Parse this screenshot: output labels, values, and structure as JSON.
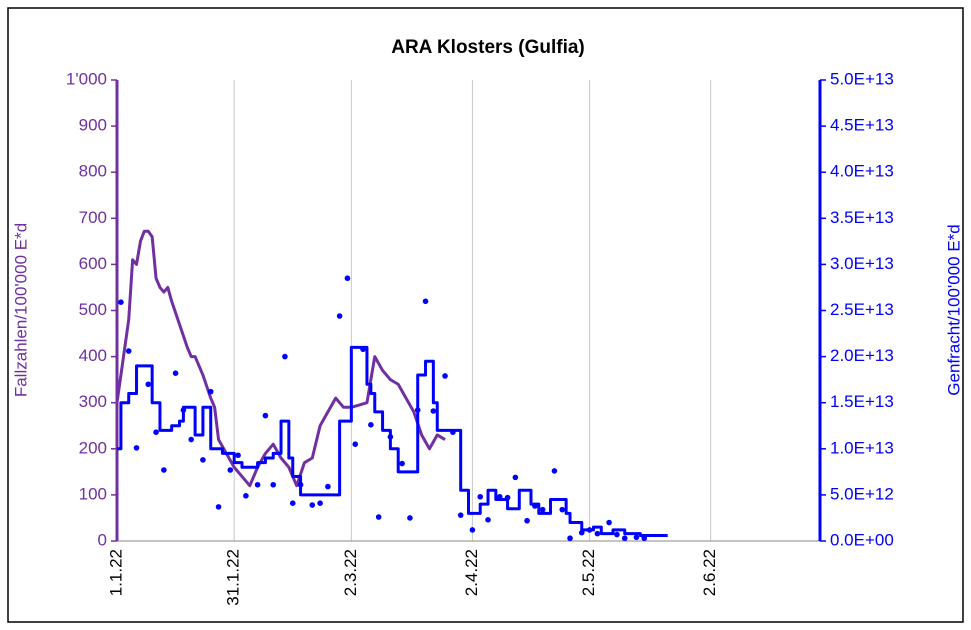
{
  "chart_data": {
    "type": "combo",
    "title": "ARA Klosters (Gulfia)",
    "ylabel": "Fallzahlen/100'000 E*d",
    "y2label": "Genfracht/100'000 E*d",
    "ylim": [
      0,
      1000
    ],
    "yticks": [
      0,
      100,
      200,
      300,
      400,
      500,
      600,
      700,
      800,
      900,
      {
        "value": 1000,
        "label": "1'000"
      }
    ],
    "y2lim": [
      0,
      50000000000000.0
    ],
    "y2ticks": [
      {
        "value": 0,
        "label": "0.0E+00"
      },
      {
        "value": 5000000000000.0,
        "label": "5.0E+12"
      },
      {
        "value": 10000000000000.0,
        "label": "1.0E+13"
      },
      {
        "value": 15000000000000.0,
        "label": "1.5E+13"
      },
      {
        "value": 20000000000000.0,
        "label": "2.0E+13"
      },
      {
        "value": 25000000000000.0,
        "label": "2.5E+13"
      },
      {
        "value": 30000000000000.0,
        "label": "3.0E+13"
      },
      {
        "value": 35000000000000.0,
        "label": "3.5E+13"
      },
      {
        "value": 40000000000000.0,
        "label": "4.0E+13"
      },
      {
        "value": 45000000000000.0,
        "label": "4.5E+13"
      },
      {
        "value": 50000000000000.0,
        "label": "5.0E+13"
      }
    ],
    "xlim": [
      "2022-01-01",
      "2022-06-30"
    ],
    "xticks": [
      {
        "value": "2022-01-01",
        "label": "1.1.22"
      },
      {
        "value": "2022-01-31",
        "label": "31.1.22"
      },
      {
        "value": "2022-03-02",
        "label": "2.3.22"
      },
      {
        "value": "2022-04-02",
        "label": "2.4.22"
      },
      {
        "value": "2022-05-02",
        "label": "2.5.22"
      },
      {
        "value": "2022-06-02",
        "label": "2.6.22"
      }
    ],
    "xgrid": true,
    "ycolor": "#7030a0",
    "y2color": "#0000ff",
    "series": [
      {
        "type": "line",
        "color": "#7030a0",
        "axis": "y",
        "x": [
          "2022-01-01",
          "2022-01-03",
          "2022-01-04",
          "2022-01-05",
          "2022-01-06",
          "2022-01-07",
          "2022-01-08",
          "2022-01-09",
          "2022-01-10",
          "2022-01-11",
          "2022-01-12",
          "2022-01-13",
          "2022-01-14",
          "2022-01-15",
          "2022-01-17",
          "2022-01-19",
          "2022-01-20",
          "2022-01-21",
          "2022-01-23",
          "2022-01-25",
          "2022-01-26",
          "2022-01-27",
          "2022-01-29",
          "2022-01-31",
          "2022-02-02",
          "2022-02-04",
          "2022-02-06",
          "2022-02-08",
          "2022-02-10",
          "2022-02-12",
          "2022-02-14",
          "2022-02-16",
          "2022-02-18",
          "2022-02-20",
          "2022-02-22",
          "2022-02-24",
          "2022-02-26",
          "2022-02-28",
          "2022-03-02",
          "2022-03-04",
          "2022-03-06",
          "2022-03-08",
          "2022-03-10",
          "2022-03-12",
          "2022-03-14",
          "2022-03-16",
          "2022-03-18",
          "2022-03-20",
          "2022-03-22",
          "2022-03-24",
          "2022-03-26"
        ],
        "values": [
          300,
          420,
          480,
          610,
          600,
          650,
          672,
          672,
          660,
          570,
          550,
          540,
          550,
          520,
          470,
          420,
          400,
          400,
          360,
          310,
          290,
          220,
          190,
          160,
          140,
          120,
          160,
          190,
          210,
          180,
          160,
          120,
          170,
          180,
          250,
          280,
          310,
          290,
          290,
          295,
          300,
          400,
          370,
          350,
          340,
          310,
          280,
          230,
          200,
          230,
          220
        ]
      },
      {
        "type": "line",
        "step": "post",
        "color": "#0000ff",
        "axis": "y2",
        "x": [
          "2022-01-01",
          "2022-01-02",
          "2022-01-04",
          "2022-01-06",
          "2022-01-10",
          "2022-01-12",
          "2022-01-15",
          "2022-01-17",
          "2022-01-18",
          "2022-01-21",
          "2022-01-23",
          "2022-01-25",
          "2022-01-28",
          "2022-01-31",
          "2022-02-02",
          "2022-02-06",
          "2022-02-08",
          "2022-02-10",
          "2022-02-12",
          "2022-02-14",
          "2022-02-15",
          "2022-02-17",
          "2022-02-27",
          "2022-03-02",
          "2022-03-06",
          "2022-03-07",
          "2022-03-08",
          "2022-03-10",
          "2022-03-12",
          "2022-03-14",
          "2022-03-19",
          "2022-03-21",
          "2022-03-23",
          "2022-03-24",
          "2022-03-30",
          "2022-04-01",
          "2022-04-04",
          "2022-04-06",
          "2022-04-08",
          "2022-04-11",
          "2022-04-14",
          "2022-04-17",
          "2022-04-19",
          "2022-04-22",
          "2022-04-26",
          "2022-04-27",
          "2022-04-30",
          "2022-05-03",
          "2022-05-05",
          "2022-05-08",
          "2022-05-11",
          "2022-05-15",
          "2022-05-22"
        ],
        "values": [
          10000000000000.0,
          15000000000000.0,
          16000000000000.0,
          19000000000000.0,
          15000000000000.0,
          12000000000000.0,
          12500000000000.0,
          13000000000000.0,
          14500000000000.0,
          11500000000000.0,
          14500000000000.0,
          10000000000000.0,
          9500000000000.0,
          8500000000000.0,
          8000000000000.0,
          8500000000000.0,
          9000000000000.0,
          9500000000000.0,
          13000000000000.0,
          9000000000000.0,
          7000000000000.0,
          5000000000000.0,
          13000000000000.0,
          21000000000000.0,
          17000000000000.0,
          16000000000000.0,
          14000000000000.0,
          12000000000000.0,
          10000000000000.0,
          7500000000000.0,
          18000000000000.0,
          19500000000000.0,
          15000000000000.0,
          12000000000000.0,
          5500000000000.0,
          3000000000000.0,
          4000000000000.0,
          5500000000000.0,
          4500000000000.0,
          3500000000000.0,
          5500000000000.0,
          4000000000000.0,
          3000000000000.0,
          4500000000000.0,
          3000000000000.0,
          2000000000000.0,
          1200000000000.0,
          1500000000000.0,
          800000000000.0,
          1200000000000.0,
          800000000000.0,
          600000000000.0,
          600000000000.0
        ]
      },
      {
        "type": "scatter",
        "color": "#0000ff",
        "axis": "y2",
        "x": [
          "2022-01-02",
          "2022-01-04",
          "2022-01-06",
          "2022-01-09",
          "2022-01-11",
          "2022-01-13",
          "2022-01-16",
          "2022-01-18",
          "2022-01-20",
          "2022-01-23",
          "2022-01-25",
          "2022-01-27",
          "2022-01-30",
          "2022-02-01",
          "2022-02-03",
          "2022-02-06",
          "2022-02-08",
          "2022-02-10",
          "2022-02-13",
          "2022-02-15",
          "2022-02-17",
          "2022-02-20",
          "2022-02-22",
          "2022-02-24",
          "2022-02-27",
          "2022-03-01",
          "2022-03-03",
          "2022-03-05",
          "2022-03-07",
          "2022-03-09",
          "2022-03-12",
          "2022-03-15",
          "2022-03-17",
          "2022-03-19",
          "2022-03-21",
          "2022-03-23",
          "2022-03-26",
          "2022-03-28",
          "2022-03-30",
          "2022-04-02",
          "2022-04-04",
          "2022-04-06",
          "2022-04-09",
          "2022-04-11",
          "2022-04-13",
          "2022-04-16",
          "2022-04-18",
          "2022-04-20",
          "2022-04-23",
          "2022-04-25",
          "2022-04-27",
          "2022-04-30",
          "2022-05-02",
          "2022-05-04",
          "2022-05-07",
          "2022-05-09",
          "2022-05-11",
          "2022-05-14",
          "2022-05-16"
        ],
        "values": [
          25900000000000.0,
          20600000000000.0,
          10100000000000.0,
          17000000000000.0,
          11800000000000.0,
          7700000000000.0,
          18200000000000.0,
          14200000000000.0,
          11000000000000.0,
          8800000000000.0,
          16200000000000.0,
          3700000000000.0,
          7700000000000.0,
          9300000000000.0,
          4900000000000.0,
          6100000000000.0,
          13600000000000.0,
          6100000000000.0,
          20000000000000.0,
          4100000000000.0,
          6100000000000.0,
          3900000000000.0,
          4100000000000.0,
          5900000000000.0,
          24400000000000.0,
          28500000000000.0,
          10500000000000.0,
          20800000000000.0,
          12600000000000.0,
          2600000000000.0,
          11300000000000.0,
          8400000000000.0,
          2500000000000.0,
          14200000000000.0,
          26000000000000.0,
          14100000000000.0,
          17900000000000.0,
          11800000000000.0,
          2800000000000.0,
          1200000000000.0,
          4800000000000.0,
          2300000000000.0,
          4800000000000.0,
          4700000000000.0,
          6900000000000.0,
          2200000000000.0,
          3800000000000.0,
          3400000000000.0,
          7600000000000.0,
          3400000000000.0,
          300000000000.0,
          900000000000.0,
          1200000000000.0,
          800000000000.0,
          2000000000000.0,
          700000000000.0,
          300000000000.0,
          400000000000.0,
          300000000000.0
        ]
      }
    ]
  }
}
